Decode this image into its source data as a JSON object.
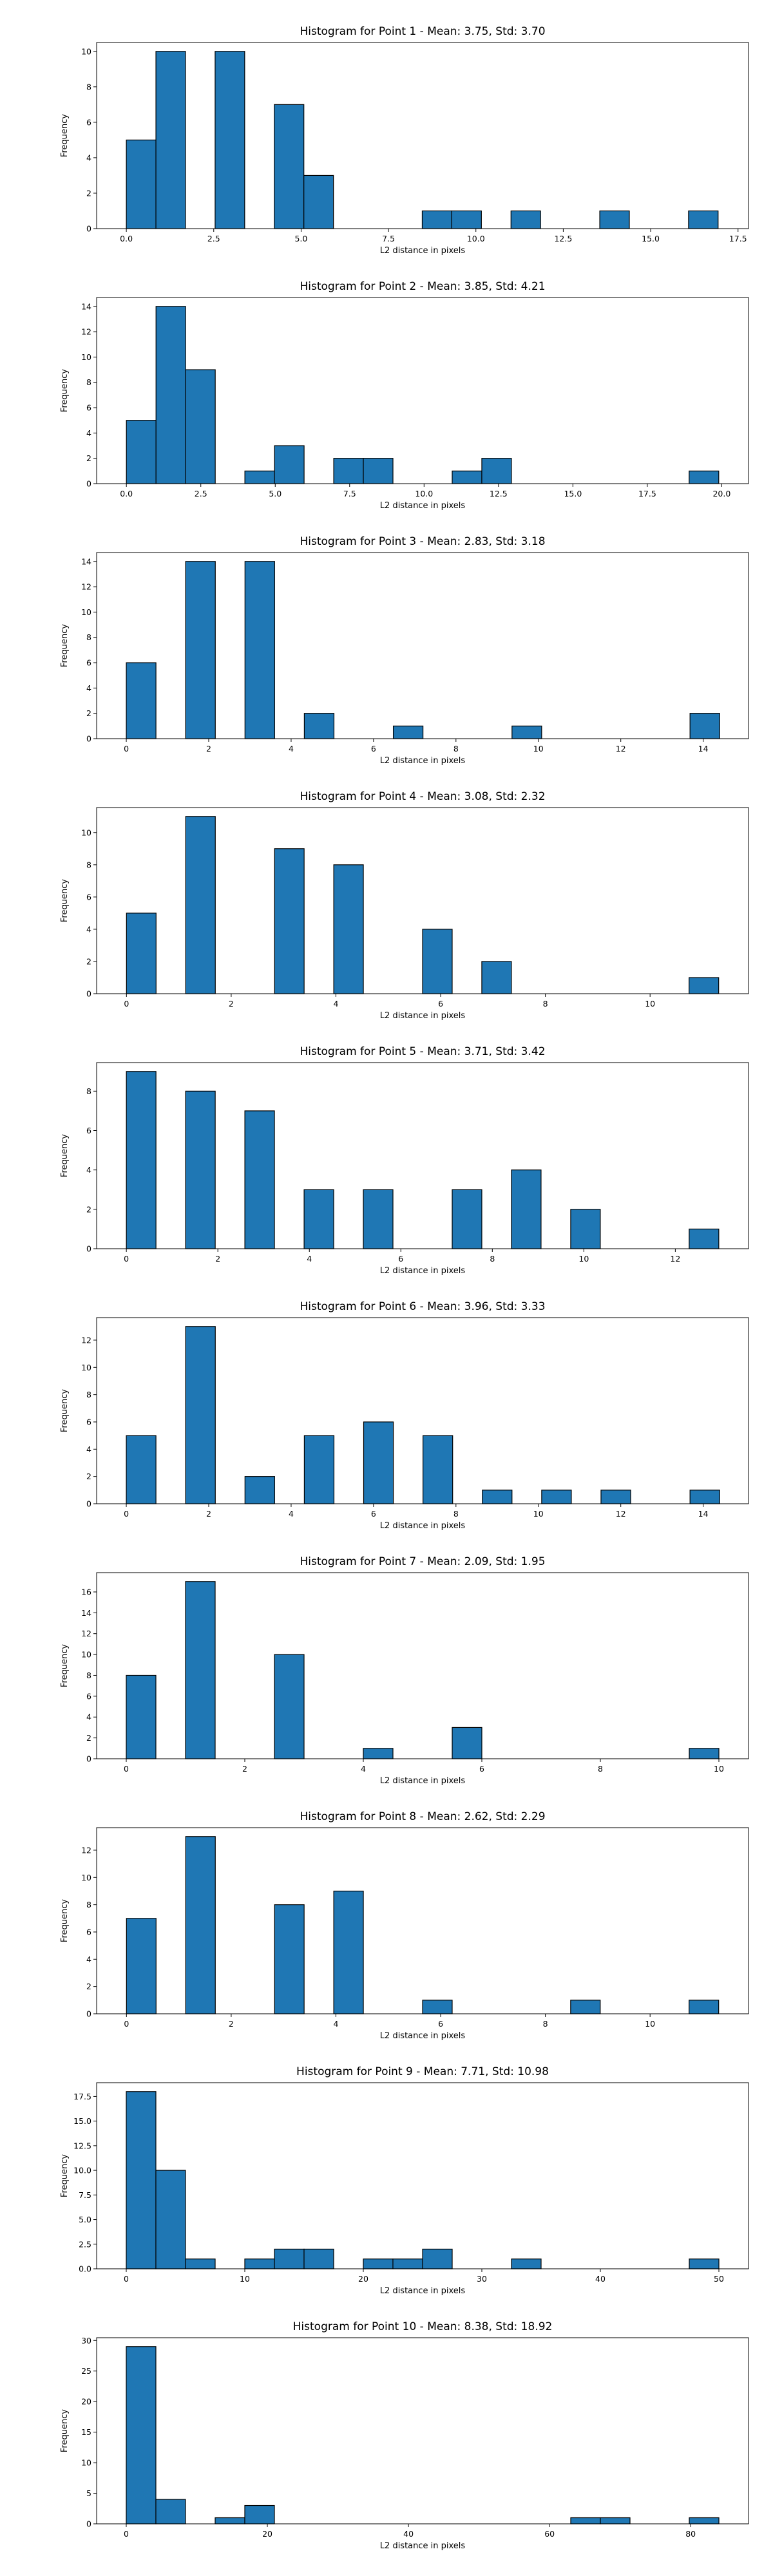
{
  "figure": {
    "background": "#ffffff",
    "bar_color": "#1f77b4",
    "edge_color": "#000000"
  },
  "chart_data": [
    {
      "type": "bar",
      "title": "Histogram for Point 1 - Mean: 3.75, Std: 3.70",
      "xlabel": "L2 distance in pixels",
      "ylabel": "Frequency",
      "xlim": [
        -0.85,
        17.8
      ],
      "ylim": [
        0,
        10.5
      ],
      "bins": 20,
      "bin_range": [
        0,
        16.93
      ],
      "counts": [
        5,
        10,
        0,
        10,
        0,
        7,
        3,
        0,
        0,
        0,
        1,
        1,
        0,
        1,
        0,
        0,
        1,
        0,
        0,
        1
      ],
      "xticks": [
        0,
        2.5,
        5,
        7.5,
        10,
        12.5,
        15,
        17.5
      ],
      "xtick_labels": [
        "0.0",
        "2.5",
        "5.0",
        "7.5",
        "10.0",
        "12.5",
        "15.0",
        "17.5"
      ],
      "yticks": [
        0,
        2,
        4,
        6,
        8,
        10
      ],
      "ytick_labels": [
        "0",
        "2",
        "4",
        "6",
        "8",
        "10"
      ],
      "grid": false
    },
    {
      "type": "bar",
      "title": "Histogram for Point 2 - Mean: 3.85, Std: 4.21",
      "xlabel": "L2 distance in pixels",
      "ylabel": "Frequency",
      "xlim": [
        -1.0,
        20.9
      ],
      "ylim": [
        0,
        14.7
      ],
      "bins": 20,
      "bin_range": [
        0,
        19.9
      ],
      "counts": [
        5,
        14,
        9,
        0,
        1,
        3,
        0,
        2,
        2,
        0,
        0,
        1,
        2,
        0,
        0,
        0,
        0,
        0,
        0,
        1
      ],
      "xticks": [
        0,
        2.5,
        5,
        7.5,
        10,
        12.5,
        15,
        17.5,
        20
      ],
      "xtick_labels": [
        "0.0",
        "2.5",
        "5.0",
        "7.5",
        "10.0",
        "12.5",
        "15.0",
        "17.5",
        "20.0"
      ],
      "yticks": [
        0,
        2,
        4,
        6,
        8,
        10,
        12,
        14
      ],
      "ytick_labels": [
        "0",
        "2",
        "4",
        "6",
        "8",
        "10",
        "12",
        "14"
      ],
      "grid": false
    },
    {
      "type": "bar",
      "title": "Histogram for Point 3 - Mean: 2.83, Std: 3.18",
      "xlabel": "L2 distance in pixels",
      "ylabel": "Frequency",
      "xlim": [
        -0.72,
        15.1
      ],
      "ylim": [
        0,
        14.7
      ],
      "bins": 20,
      "bin_range": [
        0,
        14.4
      ],
      "counts": [
        6,
        0,
        14,
        0,
        14,
        0,
        2,
        0,
        0,
        1,
        0,
        0,
        0,
        1,
        0,
        0,
        0,
        0,
        0,
        2
      ],
      "xticks": [
        0,
        2,
        4,
        6,
        8,
        10,
        12,
        14
      ],
      "xtick_labels": [
        "0",
        "2",
        "4",
        "6",
        "8",
        "10",
        "12",
        "14"
      ],
      "yticks": [
        0,
        2,
        4,
        6,
        8,
        10,
        12,
        14
      ],
      "ytick_labels": [
        "0",
        "2",
        "4",
        "6",
        "8",
        "10",
        "12",
        "14"
      ],
      "grid": false
    },
    {
      "type": "bar",
      "title": "Histogram for Point 4 - Mean: 3.08, Std: 2.32",
      "xlabel": "L2 distance in pixels",
      "ylabel": "Frequency",
      "xlim": [
        -0.57,
        11.88
      ],
      "ylim": [
        0,
        11.55
      ],
      "bins": 20,
      "bin_range": [
        0,
        11.31
      ],
      "counts": [
        5,
        0,
        11,
        0,
        0,
        9,
        0,
        8,
        0,
        0,
        4,
        0,
        2,
        0,
        0,
        0,
        0,
        0,
        0,
        1
      ],
      "xticks": [
        0,
        2,
        4,
        6,
        8,
        10
      ],
      "xtick_labels": [
        "0",
        "2",
        "4",
        "6",
        "8",
        "10"
      ],
      "yticks": [
        0,
        2,
        4,
        6,
        8,
        10
      ],
      "ytick_labels": [
        "0",
        "2",
        "4",
        "6",
        "8",
        "10"
      ],
      "grid": false
    },
    {
      "type": "bar",
      "title": "Histogram for Point 5 - Mean: 3.71, Std: 3.42",
      "xlabel": "L2 distance in pixels",
      "ylabel": "Frequency",
      "xlim": [
        -0.65,
        13.6
      ],
      "ylim": [
        0,
        9.45
      ],
      "bins": 20,
      "bin_range": [
        0,
        12.95
      ],
      "counts": [
        9,
        0,
        8,
        0,
        7,
        0,
        3,
        0,
        3,
        0,
        0,
        3,
        0,
        4,
        0,
        2,
        0,
        0,
        0,
        1
      ],
      "xticks": [
        0,
        2,
        4,
        6,
        8,
        10,
        12
      ],
      "xtick_labels": [
        "0",
        "2",
        "4",
        "6",
        "8",
        "10",
        "12"
      ],
      "yticks": [
        0,
        2,
        4,
        6,
        8
      ],
      "ytick_labels": [
        "0",
        "2",
        "4",
        "6",
        "8"
      ],
      "grid": false
    },
    {
      "type": "bar",
      "title": "Histogram for Point 6 - Mean: 3.96, Std: 3.33",
      "xlabel": "L2 distance in pixels",
      "ylabel": "Frequency",
      "xlim": [
        -0.72,
        15.1
      ],
      "ylim": [
        0,
        13.65
      ],
      "bins": 20,
      "bin_range": [
        0,
        14.4
      ],
      "counts": [
        5,
        0,
        13,
        0,
        2,
        0,
        5,
        0,
        6,
        0,
        5,
        0,
        1,
        0,
        1,
        0,
        1,
        0,
        0,
        1
      ],
      "xticks": [
        0,
        2,
        4,
        6,
        8,
        10,
        12,
        14
      ],
      "xtick_labels": [
        "0",
        "2",
        "4",
        "6",
        "8",
        "10",
        "12",
        "14"
      ],
      "yticks": [
        0,
        2,
        4,
        6,
        8,
        10,
        12
      ],
      "ytick_labels": [
        "0",
        "2",
        "4",
        "6",
        "8",
        "10",
        "12"
      ],
      "grid": false
    },
    {
      "type": "bar",
      "title": "Histogram for Point 7 - Mean: 2.09, Std: 1.95",
      "xlabel": "L2 distance in pixels",
      "ylabel": "Frequency",
      "xlim": [
        -0.5,
        10.5
      ],
      "ylim": [
        0,
        17.85
      ],
      "bins": 20,
      "bin_range": [
        0,
        10.0
      ],
      "counts": [
        8,
        0,
        17,
        0,
        0,
        10,
        0,
        0,
        1,
        0,
        0,
        3,
        0,
        0,
        0,
        0,
        0,
        0,
        0,
        1
      ],
      "xticks": [
        0,
        2,
        4,
        6,
        8,
        10
      ],
      "xtick_labels": [
        "0",
        "2",
        "4",
        "6",
        "8",
        "10"
      ],
      "yticks": [
        0,
        2,
        4,
        6,
        8,
        10,
        12,
        14,
        16
      ],
      "ytick_labels": [
        "0",
        "2",
        "4",
        "6",
        "8",
        "10",
        "12",
        "14",
        "16"
      ],
      "grid": false
    },
    {
      "type": "bar",
      "title": "Histogram for Point 8 - Mean: 2.62, Std: 2.29",
      "xlabel": "L2 distance in pixels",
      "ylabel": "Frequency",
      "xlim": [
        -0.57,
        11.88
      ],
      "ylim": [
        0,
        13.65
      ],
      "bins": 20,
      "bin_range": [
        0,
        11.31
      ],
      "counts": [
        7,
        0,
        13,
        0,
        0,
        8,
        0,
        9,
        0,
        0,
        1,
        0,
        0,
        0,
        0,
        1,
        0,
        0,
        0,
        1
      ],
      "xticks": [
        0,
        2,
        4,
        6,
        8,
        10
      ],
      "xtick_labels": [
        "0",
        "2",
        "4",
        "6",
        "8",
        "10"
      ],
      "yticks": [
        0,
        2,
        4,
        6,
        8,
        10,
        12
      ],
      "ytick_labels": [
        "0",
        "2",
        "4",
        "6",
        "8",
        "10",
        "12"
      ],
      "grid": false
    },
    {
      "type": "bar",
      "title": "Histogram for Point 9 - Mean: 7.71, Std: 10.98",
      "xlabel": "L2 distance in pixels",
      "ylabel": "Frequency",
      "xlim": [
        -2.5,
        52.5
      ],
      "ylim": [
        0,
        18.9
      ],
      "bins": 20,
      "bin_range": [
        0,
        50.0
      ],
      "counts": [
        18,
        10,
        1,
        0,
        1,
        2,
        2,
        0,
        1,
        1,
        2,
        0,
        0,
        1,
        0,
        0,
        0,
        0,
        0,
        1
      ],
      "xticks": [
        0,
        10,
        20,
        30,
        40,
        50
      ],
      "xtick_labels": [
        "0",
        "10",
        "20",
        "30",
        "40",
        "50"
      ],
      "yticks": [
        0,
        2.5,
        5,
        7.5,
        10,
        12.5,
        15,
        17.5
      ],
      "ytick_labels": [
        "0.0",
        "2.5",
        "5.0",
        "7.5",
        "10.0",
        "12.5",
        "15.0",
        "17.5"
      ],
      "grid": false
    },
    {
      "type": "bar",
      "title": "Histogram for Point 10 - Mean: 8.38, Std: 18.92",
      "xlabel": "L2 distance in pixels",
      "ylabel": "Frequency",
      "xlim": [
        -4.2,
        88.2
      ],
      "ylim": [
        0,
        30.45
      ],
      "bins": 20,
      "bin_range": [
        0,
        84.0
      ],
      "counts": [
        29,
        4,
        0,
        1,
        3,
        0,
        0,
        0,
        0,
        0,
        0,
        0,
        0,
        0,
        0,
        1,
        1,
        0,
        0,
        1
      ],
      "xticks": [
        0,
        20,
        40,
        60,
        80
      ],
      "xtick_labels": [
        "0",
        "20",
        "40",
        "60",
        "80"
      ],
      "yticks": [
        0,
        5,
        10,
        15,
        20,
        25,
        30
      ],
      "ytick_labels": [
        "0",
        "5",
        "10",
        "15",
        "20",
        "25",
        "30"
      ],
      "grid": false
    }
  ]
}
